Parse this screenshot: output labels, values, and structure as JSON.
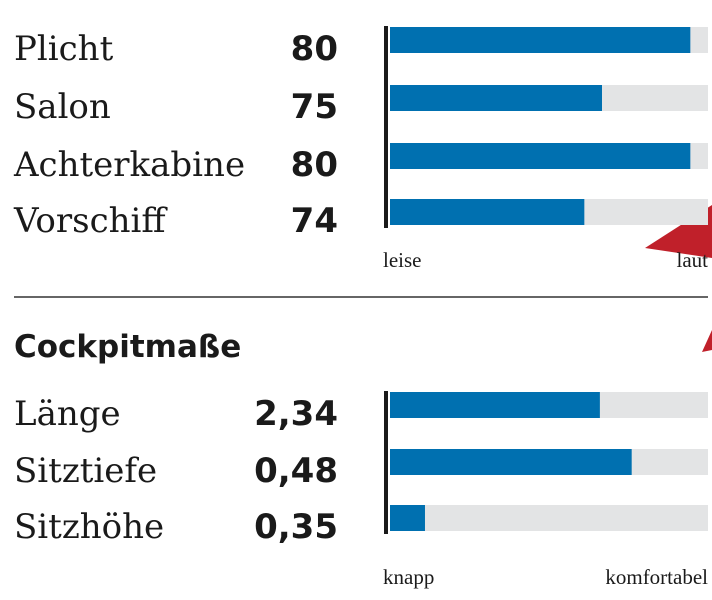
{
  "chart_data": [
    {
      "type": "bar",
      "orientation": "horizontal",
      "categories": [
        "Plicht",
        "Salon",
        "Achterkabine",
        "Vorschiff"
      ],
      "values": [
        80,
        75,
        80,
        74
      ],
      "xlim": [
        63,
        81
      ],
      "scale_labels": [
        "leise",
        "laut"
      ],
      "color": "#0070b0",
      "track_color": "#e3e4e5"
    },
    {
      "type": "bar",
      "orientation": "horizontal",
      "title": "Cockpitmaße",
      "categories": [
        "Länge",
        "Sitztiefe",
        "Sitzhöhe"
      ],
      "values": [
        2.34,
        0.48,
        0.35
      ],
      "value_labels": [
        "2,34",
        "0,48",
        "0,35"
      ],
      "scores": [
        66,
        76,
        11
      ],
      "xlim": [
        0,
        100
      ],
      "scale_labels": [
        "knapp",
        "komfortabel"
      ],
      "color": "#0070b0",
      "track_color": "#e3e4e5"
    }
  ]
}
